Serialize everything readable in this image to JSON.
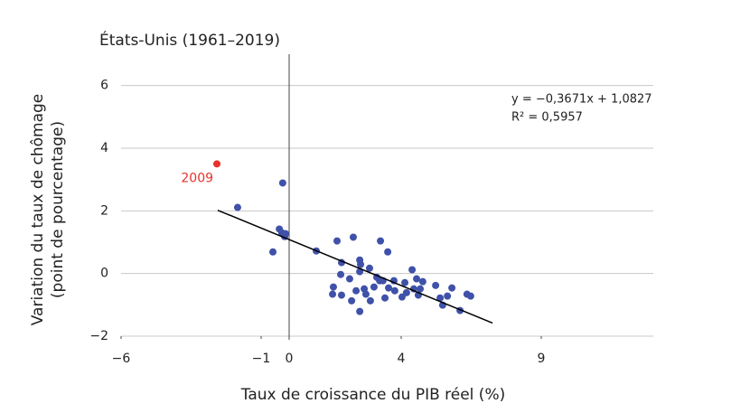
{
  "chart_data": {
    "type": "scatter",
    "title": "États-Unis (1961–2019)",
    "xlabel": "Taux de croissance du PIB réel (%)",
    "ylabel": [
      "Variation du taux de chômage",
      "(point de pourcentage)"
    ],
    "xlim": [
      -6,
      13
    ],
    "ylim": [
      -2,
      7
    ],
    "xticks": [
      {
        "value": -6,
        "label": "−6"
      },
      {
        "value": -1,
        "label": "−1"
      },
      0,
      4,
      9
    ],
    "yticks": [
      {
        "value": -2,
        "label": "−2"
      },
      0,
      2,
      4,
      6
    ],
    "grid": true,
    "series": [
      {
        "color": "#3f51a8",
        "x": [
          -1.84,
          -0.23,
          -0.58,
          -0.35,
          -0.26,
          -0.16,
          -0.13,
          0.97,
          1.71,
          2.29,
          1.87,
          1.84,
          1.58,
          1.55,
          1.87,
          2.23,
          2.52,
          2.16,
          2.52,
          2.55,
          2.52,
          2.39,
          2.68,
          2.74,
          2.9,
          2.87,
          3.03,
          3.23,
          3.13,
          3.26,
          3.52,
          3.35,
          3.55,
          3.42,
          3.74,
          3.77,
          4.03,
          4.19,
          4.13,
          4.39,
          4.55,
          4.45,
          4.68,
          4.61,
          4.77,
          5.23,
          5.39,
          5.48,
          5.65,
          5.81,
          6.1,
          6.35,
          6.48
        ],
        "values": [
          2.11,
          2.89,
          0.69,
          1.42,
          1.3,
          1.18,
          1.27,
          0.72,
          1.04,
          1.16,
          0.35,
          -0.03,
          -0.43,
          -0.66,
          -0.69,
          -0.87,
          -1.21,
          -0.17,
          0.43,
          0.29,
          0.06,
          -0.55,
          -0.49,
          -0.66,
          -0.87,
          0.17,
          -0.43,
          -0.23,
          -0.12,
          1.04,
          0.69,
          -0.23,
          -0.46,
          -0.78,
          -0.23,
          -0.55,
          -0.75,
          -0.61,
          -0.29,
          0.12,
          -0.17,
          -0.49,
          -0.49,
          -0.69,
          -0.26,
          -0.38,
          -0.78,
          -1.01,
          -0.72,
          -0.46,
          -1.18,
          -0.66,
          -0.72
        ]
      }
    ],
    "highlight": {
      "label": "2009",
      "x": -2.58,
      "y": 3.5,
      "color": "#e8312b"
    },
    "trendline": {
      "x": [
        -2.55,
        7.26
      ],
      "y": [
        2.02,
        -1.58
      ],
      "color": "#000000",
      "equation": "y = −0,3671x + 1,0827",
      "r2": "R² = 0,5957"
    }
  }
}
